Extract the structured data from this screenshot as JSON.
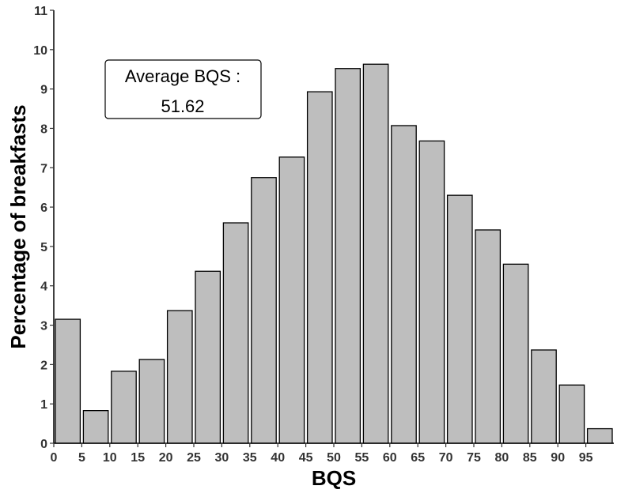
{
  "chart_data": {
    "type": "bar",
    "title": "",
    "xlabel": "BQS",
    "ylabel": "Percentage of breakfasts",
    "x_ticks": [
      "0",
      "5",
      "10",
      "15",
      "20",
      "25",
      "30",
      "35",
      "40",
      "45",
      "50",
      "55",
      "60",
      "65",
      "70",
      "75",
      "80",
      "85",
      "90",
      "95"
    ],
    "y_ticks": [
      "0",
      "1",
      "2",
      "3",
      "4",
      "5",
      "6",
      "7",
      "8",
      "9",
      "10",
      "11"
    ],
    "xlim": [
      0,
      100
    ],
    "ylim": [
      0,
      11
    ],
    "grid": false,
    "legend": false,
    "bins": [
      {
        "start": 0,
        "end": 5,
        "value": 3.15
      },
      {
        "start": 5,
        "end": 10,
        "value": 0.83
      },
      {
        "start": 10,
        "end": 15,
        "value": 1.83
      },
      {
        "start": 15,
        "end": 20,
        "value": 2.13
      },
      {
        "start": 20,
        "end": 25,
        "value": 3.37
      },
      {
        "start": 25,
        "end": 30,
        "value": 4.37
      },
      {
        "start": 30,
        "end": 35,
        "value": 5.6
      },
      {
        "start": 35,
        "end": 40,
        "value": 6.75
      },
      {
        "start": 40,
        "end": 45,
        "value": 7.27
      },
      {
        "start": 45,
        "end": 50,
        "value": 8.93
      },
      {
        "start": 50,
        "end": 55,
        "value": 9.52
      },
      {
        "start": 55,
        "end": 60,
        "value": 9.63
      },
      {
        "start": 60,
        "end": 65,
        "value": 8.07
      },
      {
        "start": 65,
        "end": 70,
        "value": 7.68
      },
      {
        "start": 70,
        "end": 75,
        "value": 6.3
      },
      {
        "start": 75,
        "end": 80,
        "value": 5.42
      },
      {
        "start": 80,
        "end": 85,
        "value": 4.55
      },
      {
        "start": 85,
        "end": 90,
        "value": 2.37
      },
      {
        "start": 90,
        "end": 95,
        "value": 1.48
      },
      {
        "start": 95,
        "end": 100,
        "value": 0.37
      }
    ],
    "bar_color": "#bebebe",
    "bar_edge_color": "#000000",
    "annotation": {
      "line1": "Average BQS :",
      "line2": "51.62"
    }
  }
}
